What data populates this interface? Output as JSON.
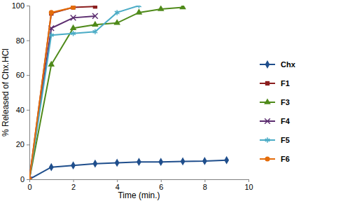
{
  "chart_data": {
    "type": "line",
    "x_label": "Time (min.)",
    "y_label": "% Released of Chx.HCl",
    "xlim": [
      0,
      10
    ],
    "xticks": [
      0,
      2,
      4,
      6,
      8,
      10
    ],
    "ylim": [
      0,
      100
    ],
    "yticks": [
      0,
      20,
      40,
      60,
      80,
      100
    ],
    "grid": false,
    "legend": "right",
    "series": [
      {
        "name": "Chx",
        "color": "#1f4e8c",
        "marker": "diamond",
        "x": [
          0,
          1,
          2,
          3,
          4,
          5,
          6,
          7,
          8,
          9
        ],
        "values": [
          0,
          7,
          8,
          9,
          9.5,
          10,
          10,
          10.3,
          10.5,
          11
        ]
      },
      {
        "name": "F1",
        "color": "#8b1e1e",
        "marker": "square",
        "x": [
          0,
          1,
          2,
          3
        ],
        "values": [
          0,
          95.5,
          99,
          99.5
        ]
      },
      {
        "name": "F3",
        "color": "#4f8a1a",
        "marker": "triangle",
        "x": [
          0,
          1,
          2,
          3,
          4,
          5,
          6,
          7
        ],
        "values": [
          0,
          66,
          87,
          89,
          90,
          96,
          98,
          99
        ]
      },
      {
        "name": "F4",
        "color": "#5b2c6f",
        "marker": "x",
        "x": [
          0,
          1,
          2,
          3
        ],
        "values": [
          0,
          87,
          93,
          94
        ]
      },
      {
        "name": "F5",
        "color": "#4bacc6",
        "marker": "asterisk",
        "x": [
          0,
          1,
          2,
          3,
          4,
          5
        ],
        "values": [
          0,
          83,
          84,
          85,
          96,
          100
        ]
      },
      {
        "name": "F6",
        "color": "#e46c0a",
        "marker": "circle",
        "x": [
          0,
          1,
          2
        ],
        "values": [
          0,
          96,
          99
        ]
      }
    ]
  }
}
